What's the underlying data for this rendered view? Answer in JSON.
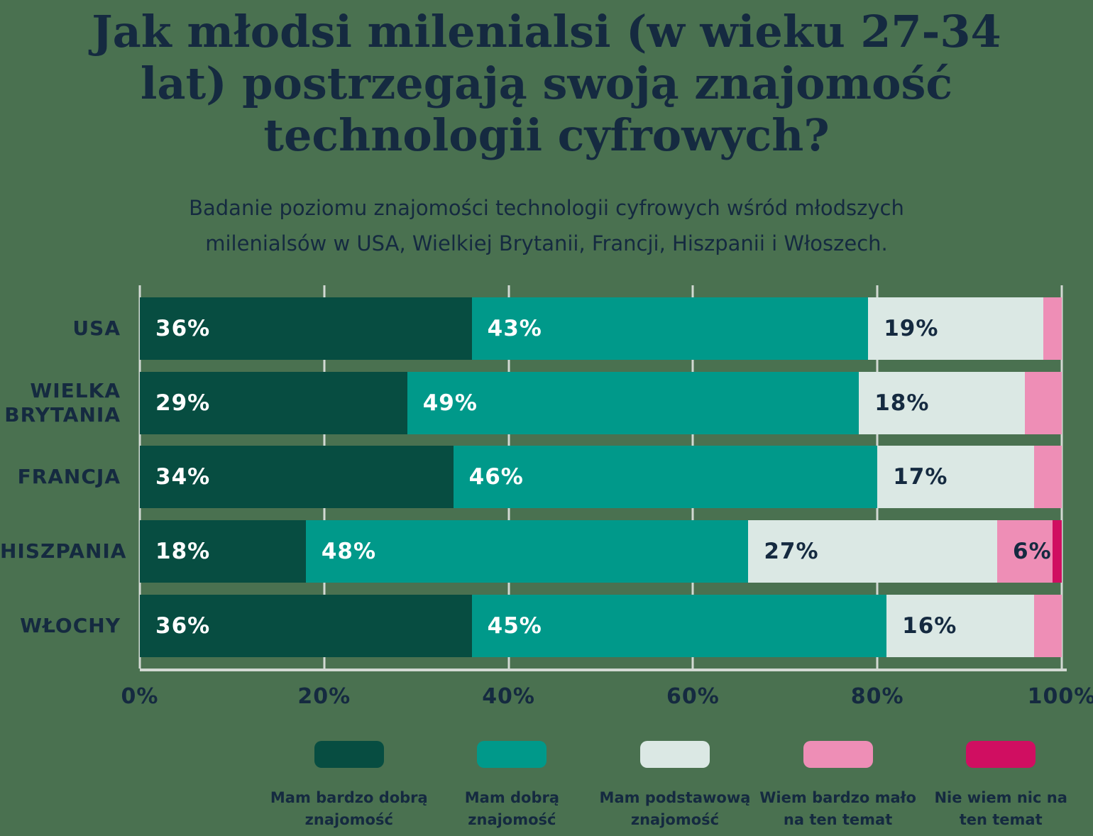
{
  "title": "Jak młodsi milenialsi (w wieku 27-34 lat) postrzegają swoją znajomość technologii cyfrowych?",
  "subtitle": "Badanie poziomu znajomości technologii cyfrowych wśród młodszych milenialsów w USA, Wielkiej Brytanii, Francji, Hiszpanii i Włoszech.",
  "colors": {
    "background": "#4a7150",
    "text": "#152a40",
    "gridline": "#d2d9d3"
  },
  "chart_data": {
    "type": "bar",
    "stacked": true,
    "orientation": "horizontal",
    "title": "Jak młodsi milenialsi (w wieku 27-34 lat) postrzegają swoją znajomość technologii cyfrowych?",
    "subtitle": "Badanie poziomu znajomości technologii cyfrowych wśród młodszych milenialsów w USA, Wielkiej Brytanii, Francji, Hiszpanii i Włoszech.",
    "categories": [
      "USA",
      "WIELKA BRYTANIA",
      "FRANCJA",
      "HISZPANIA",
      "WŁOCHY"
    ],
    "series": [
      {
        "name": "Mam bardzo dobrą znajomość",
        "color": "#074d41",
        "label_color": "#ffffff",
        "values": [
          36,
          29,
          34,
          18,
          36
        ]
      },
      {
        "name": "Mam dobrą znajomość",
        "color": "#00998a",
        "label_color": "#ffffff",
        "values": [
          43,
          49,
          46,
          48,
          45
        ]
      },
      {
        "name": "Mam podstawową znajomość",
        "color": "#dbe8e4",
        "label_color": "#152a40",
        "values": [
          19,
          18,
          17,
          27,
          16
        ]
      },
      {
        "name": "Wiem bardzo mało na ten temat",
        "color": "#ee8eb6",
        "label_color": "#152a40",
        "values": [
          2,
          4,
          3,
          6,
          3
        ]
      },
      {
        "name": "Nie wiem nic na ten temat",
        "color": "#d00e61",
        "label_color": "#ffffff",
        "values": [
          0,
          0,
          0,
          1,
          0
        ]
      }
    ],
    "x_ticks": [
      "0%",
      "20%",
      "40%",
      "60%",
      "80%",
      "100%"
    ],
    "xlim": [
      0,
      100
    ],
    "value_suffix": "%",
    "label_min_value": 6,
    "grid": "vertical",
    "legend_position": "bottom"
  }
}
